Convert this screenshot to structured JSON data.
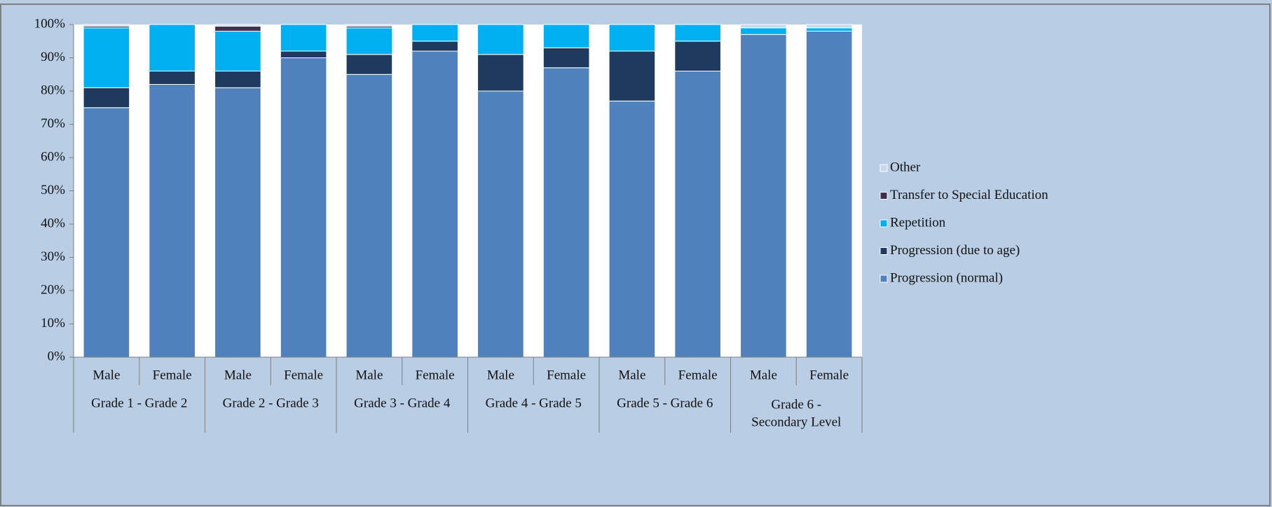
{
  "chart_data": {
    "type": "stacked_bar",
    "groups": [
      {
        "lines": [
          "Grade 1 - Grade 2"
        ],
        "categories": [
          "Male",
          "Female"
        ]
      },
      {
        "lines": [
          "Grade 2 - Grade 3"
        ],
        "categories": [
          "Male",
          "Female"
        ]
      },
      {
        "lines": [
          "Grade 3 - Grade 4"
        ],
        "categories": [
          "Male",
          "Female"
        ]
      },
      {
        "lines": [
          "Grade 4 - Grade 5"
        ],
        "categories": [
          "Male",
          "Female"
        ]
      },
      {
        "lines": [
          "Grade 5 - Grade 6"
        ],
        "categories": [
          "Male",
          "Female"
        ]
      },
      {
        "lines": [
          "Grade 6 -",
          "Secondary Level"
        ],
        "categories": [
          "Male",
          "Female"
        ]
      }
    ],
    "series": [
      {
        "name": "Progression (normal)",
        "color": "#4f81bd",
        "values": [
          75,
          82,
          81,
          90,
          85,
          92,
          80,
          87,
          77,
          86,
          97,
          98
        ]
      },
      {
        "name": "Progression (due to age)",
        "color": "#1f3a5f",
        "values": [
          6,
          4,
          5,
          2,
          6,
          3,
          11,
          6,
          15,
          9,
          0,
          0
        ]
      },
      {
        "name": "Repetition",
        "color": "#00b0f0",
        "values": [
          18,
          14,
          12,
          8,
          8,
          5,
          9,
          7,
          8,
          5,
          2,
          1
        ]
      },
      {
        "name": "Transfer to Special Education",
        "color": "#403152",
        "values": [
          0.5,
          0,
          1.5,
          0,
          0.5,
          0,
          0,
          0,
          0,
          0,
          0,
          0
        ]
      },
      {
        "name": "Other",
        "color": "#c5d9f1",
        "values": [
          0.5,
          0,
          0.5,
          0,
          0.5,
          0,
          0,
          0,
          0,
          0,
          1,
          1
        ]
      }
    ],
    "ylim": [
      0,
      100
    ],
    "yticks": [
      {
        "value": 0,
        "label": "0%"
      },
      {
        "value": 10,
        "label": "10%"
      },
      {
        "value": 20,
        "label": "20%"
      },
      {
        "value": 30,
        "label": "30%"
      },
      {
        "value": 40,
        "label": "40%"
      },
      {
        "value": 50,
        "label": "50%"
      },
      {
        "value": 60,
        "label": "60%"
      },
      {
        "value": 70,
        "label": "70%"
      },
      {
        "value": 80,
        "label": "80%"
      },
      {
        "value": 90,
        "label": "90%"
      },
      {
        "value": 100,
        "label": "100%"
      }
    ],
    "legend": "right"
  }
}
